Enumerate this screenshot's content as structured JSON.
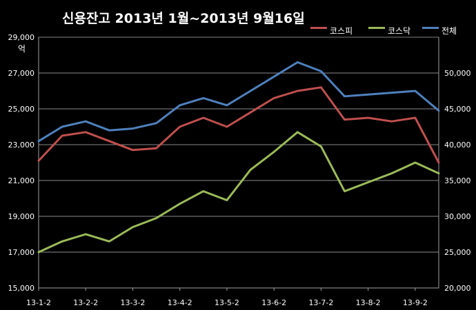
{
  "chart_data": {
    "type": "line",
    "title": "신용잔고 2013년 1월~2013년 9월16일",
    "left_unit": "억",
    "legend_position": "top-right",
    "grid": true,
    "x_tick_labels": [
      "13-1-2",
      "13-2-2",
      "13-3-2",
      "13-4-2",
      "13-5-2",
      "13-6-2",
      "13-7-2",
      "13-8-2",
      "13-9-2"
    ],
    "x": [
      0,
      0.5,
      1,
      1.5,
      2,
      2.5,
      3,
      3.5,
      4,
      4.5,
      5,
      5.5,
      6,
      6.5,
      7,
      7.5,
      8,
      8.5
    ],
    "y_left": {
      "min": 15000,
      "max": 29000,
      "ticks": [
        "15,000",
        "17,000",
        "19,000",
        "21,000",
        "23,000",
        "25,000",
        "27,000",
        "29,000"
      ]
    },
    "y_right": {
      "min": 20000,
      "max": 55000,
      "ticks": [
        "20,000",
        "25,000",
        "30,000",
        "35,000",
        "40,000",
        "45,000",
        "50,000"
      ]
    },
    "series": [
      {
        "name": "코스피",
        "axis": "left",
        "color": "#c0504d",
        "values": [
          22100,
          23500,
          23700,
          23200,
          22700,
          22800,
          24000,
          24500,
          24000,
          24800,
          25600,
          26000,
          26200,
          24400,
          24500,
          24300,
          24500,
          22000
        ]
      },
      {
        "name": "코스닥",
        "axis": "left",
        "color": "#9bbb59",
        "values": [
          17000,
          17600,
          18000,
          17600,
          18400,
          18900,
          19700,
          20400,
          19900,
          21600,
          22600,
          23700,
          22900,
          20400,
          20900,
          21400,
          22000,
          21400
        ]
      },
      {
        "name": "전체",
        "axis": "left",
        "color": "#4f81bd",
        "values": [
          23200,
          24000,
          24300,
          23800,
          23900,
          24200,
          25200,
          25600,
          25200,
          26000,
          26800,
          27600,
          27100,
          25700,
          25800,
          25900,
          26000,
          24900
        ]
      }
    ]
  }
}
